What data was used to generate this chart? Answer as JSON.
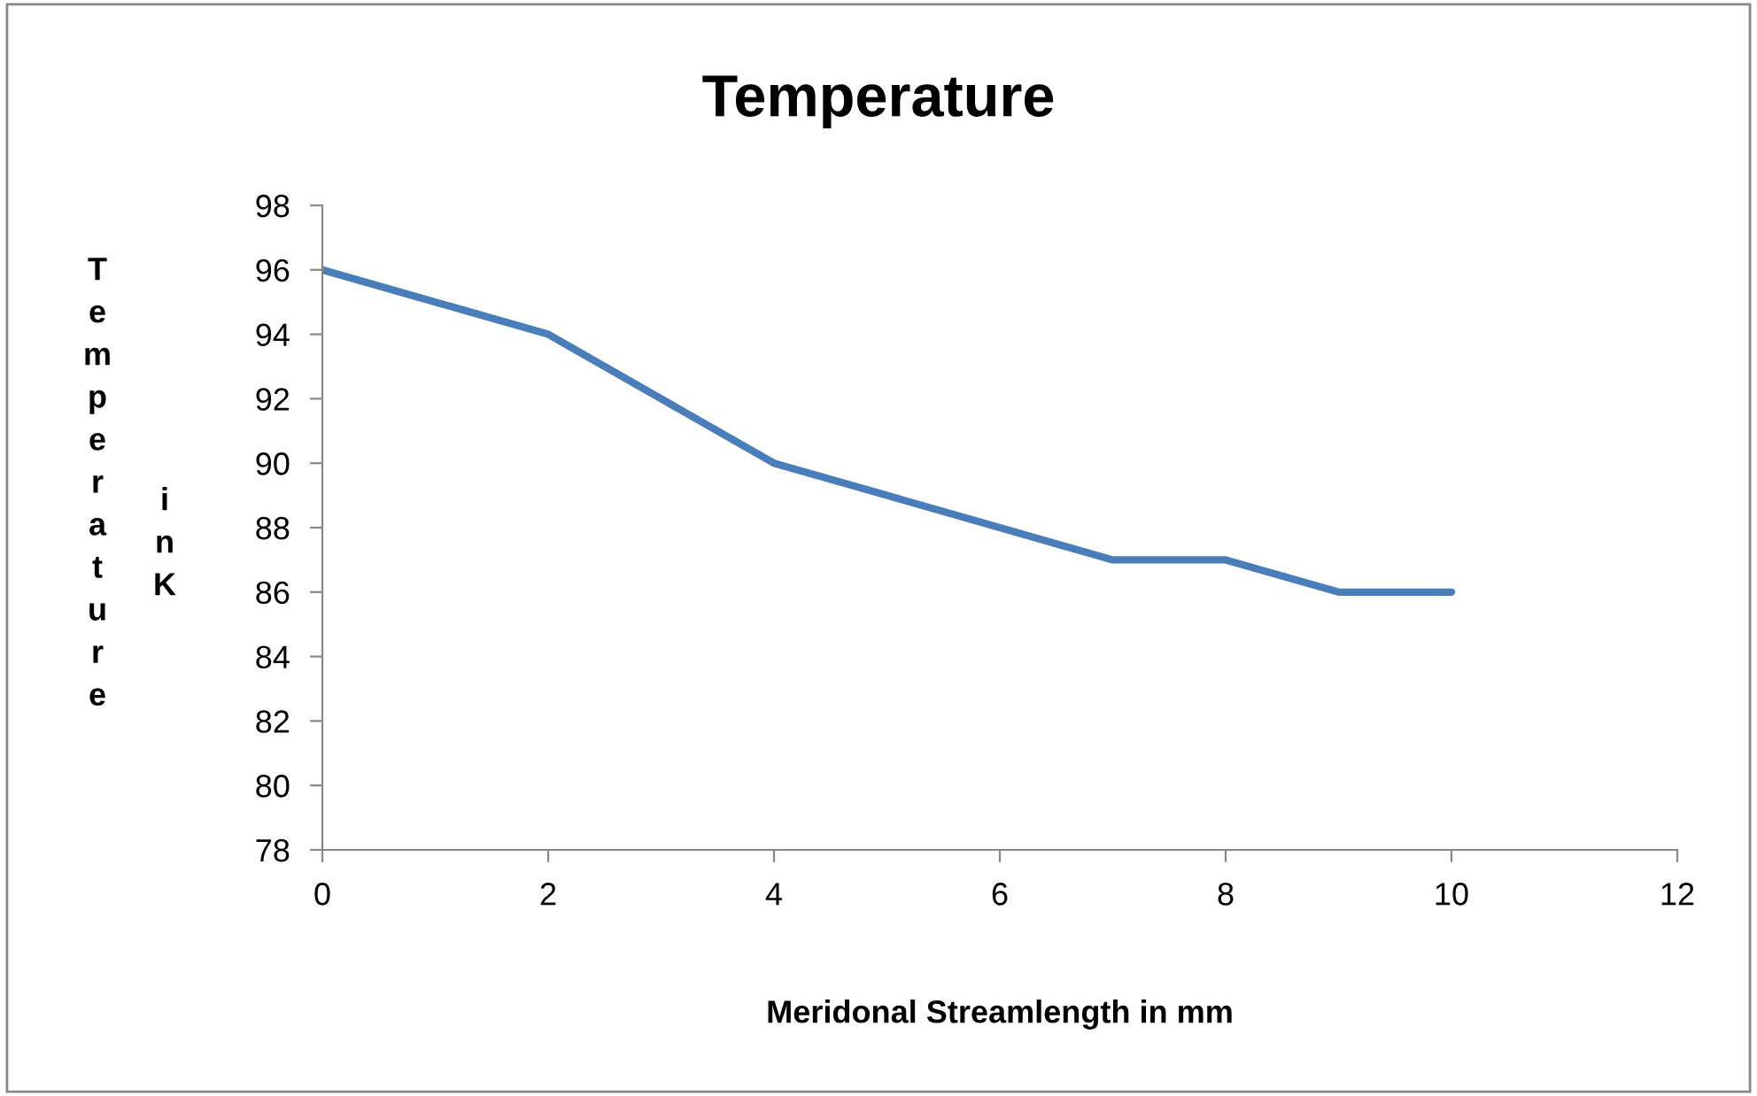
{
  "chart_data": {
    "type": "line",
    "title": "Temperature",
    "xlabel": "Meridonal Streamlength in mm",
    "ylabel": "Temperature in K",
    "x": [
      0,
      1,
      2,
      3,
      4,
      5,
      6,
      7,
      8,
      9,
      10
    ],
    "series": [
      {
        "color": "#4a7ebb",
        "values": [
          96,
          95,
          94,
          92,
          90,
          89,
          88,
          87,
          87,
          86,
          86
        ]
      }
    ],
    "xlim": [
      0,
      12
    ],
    "xticks": [
      0,
      2,
      4,
      6,
      8,
      10,
      12
    ],
    "ylim": [
      78,
      98
    ],
    "yticks": [
      78,
      80,
      82,
      84,
      86,
      88,
      90,
      92,
      94,
      96,
      98
    ],
    "grid": false,
    "legend": false,
    "marker": "none",
    "line_style": "solid"
  }
}
